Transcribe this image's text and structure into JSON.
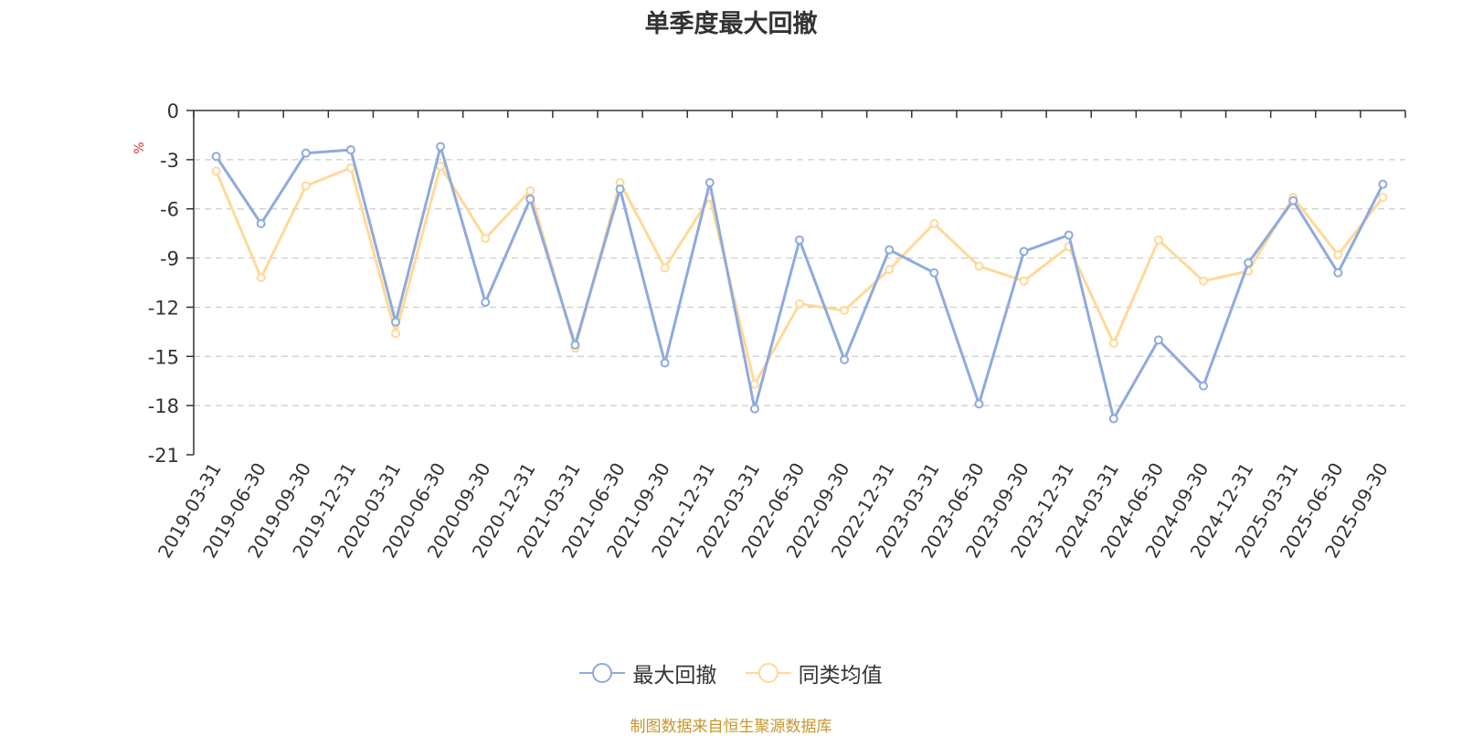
{
  "chart_data": {
    "type": "line",
    "title": "单季度最大回撤",
    "ylabel": "%",
    "ylim": [
      -21,
      0
    ],
    "yticks": [
      0,
      -3,
      -6,
      -9,
      -12,
      -15,
      -18,
      -21
    ],
    "grid": true,
    "legend_position": "bottom",
    "categories": [
      "2019-03-31",
      "2019-06-30",
      "2019-09-30",
      "2019-12-31",
      "2020-03-31",
      "2020-06-30",
      "2020-09-30",
      "2020-12-31",
      "2021-03-31",
      "2021-06-30",
      "2021-09-30",
      "2021-12-31",
      "2022-03-31",
      "2022-06-30",
      "2022-09-30",
      "2022-12-31",
      "2023-03-31",
      "2023-06-30",
      "2023-09-30",
      "2023-12-31",
      "2024-03-31",
      "2024-06-30",
      "2024-09-30",
      "2024-12-31",
      "2025-03-31",
      "2025-06-30",
      "2025-09-30"
    ],
    "series": [
      {
        "name": "最大回撤",
        "color": "#8faadc",
        "values": [
          -2.8,
          -6.9,
          -2.6,
          -2.4,
          -12.9,
          -2.2,
          -11.7,
          -5.4,
          -14.3,
          -4.8,
          -15.4,
          -4.4,
          -18.2,
          -7.9,
          -15.2,
          -8.5,
          -9.9,
          -17.9,
          -8.6,
          -7.6,
          -18.8,
          -14.0,
          -16.8,
          -9.3,
          -5.5,
          -9.9,
          -4.5
        ]
      },
      {
        "name": "同类均值",
        "color": "#ffd998",
        "values": [
          -3.7,
          -10.2,
          -4.6,
          -3.5,
          -13.6,
          -3.4,
          -7.8,
          -4.9,
          -14.5,
          -4.4,
          -9.6,
          -5.3,
          -16.7,
          -11.8,
          -12.2,
          -9.7,
          -6.9,
          -9.5,
          -10.4,
          -8.3,
          -14.2,
          -7.9,
          -10.4,
          -9.8,
          -5.3,
          -8.8,
          -5.3
        ]
      }
    ]
  },
  "source_note": "制图数据来自恒生聚源数据库"
}
